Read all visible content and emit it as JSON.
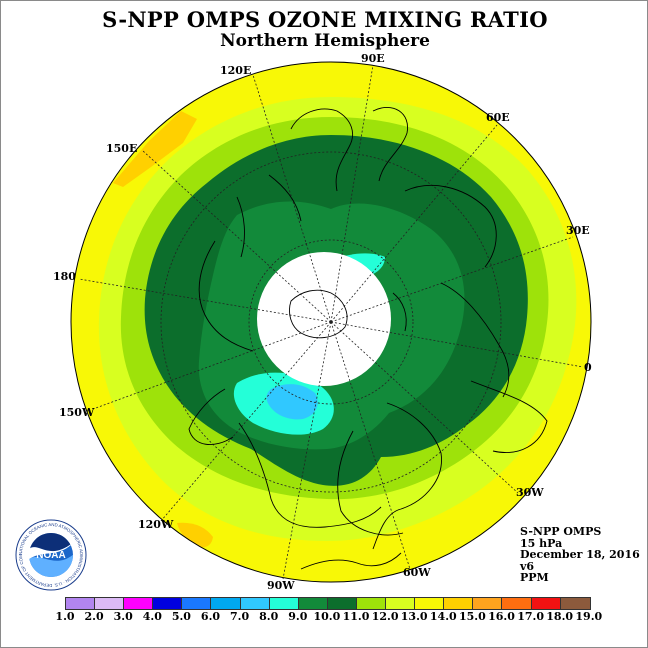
{
  "title": "S-NPP OMPS OZONE MIXING RATIO",
  "subtitle": "Northern Hemisphere",
  "longitude_labels": {
    "lon_90e": "90E",
    "lon_60e": "60E",
    "lon_30e": "30E",
    "lon_0": "0",
    "lon_30w": "30W",
    "lon_60w": "60W",
    "lon_90w": "90W",
    "lon_120w": "120W",
    "lon_150w": "150W",
    "lon_180": "180",
    "lon_150e": "150E",
    "lon_120e": "120E"
  },
  "info": {
    "instrument": "S-NPP OMPS",
    "pressure_level": "15 hPa",
    "date": "December 18, 2016",
    "version": "v6",
    "units": "PPM"
  },
  "color_scale": {
    "ticks": [
      "1.0",
      "2.0",
      "3.0",
      "4.0",
      "5.0",
      "6.0",
      "7.0",
      "8.0",
      "9.0",
      "10.0",
      "11.0",
      "12.0",
      "13.0",
      "14.0",
      "15.0",
      "16.0",
      "17.0",
      "18.0",
      "19.0"
    ],
    "colors": [
      "#b285f0",
      "#dcbaf6",
      "#ff00ff",
      "#0000e0",
      "#1a78ff",
      "#00a8f0",
      "#30c8ff",
      "#24ffd8",
      "#128a3a",
      "#0c6e2c",
      "#9ee20a",
      "#d8ff20",
      "#f8f806",
      "#ffd000",
      "#ffa41e",
      "#ff6e10",
      "#f21212",
      "#8c5a3c"
    ]
  },
  "map_colors": {
    "outer_ring": "#f8f806",
    "ring_12_13": "#d8ff20",
    "ring_11_12": "#9ee20a",
    "ring_10_11": "#0c6e2c",
    "core_9_10": "#128a3a",
    "low_8_9": "#24ffd8",
    "low_7_8": "#30c8ff",
    "high_14_15": "#ffd000",
    "polar_gap": "#ffffff",
    "coastline": "#000000"
  },
  "logo": {
    "center_text": "NOAA",
    "ring_text": "NATIONAL OCEANIC AND ATMOSPHERIC ADMINISTRATION · U.S. DEPARTMENT OF COMMERCE"
  }
}
